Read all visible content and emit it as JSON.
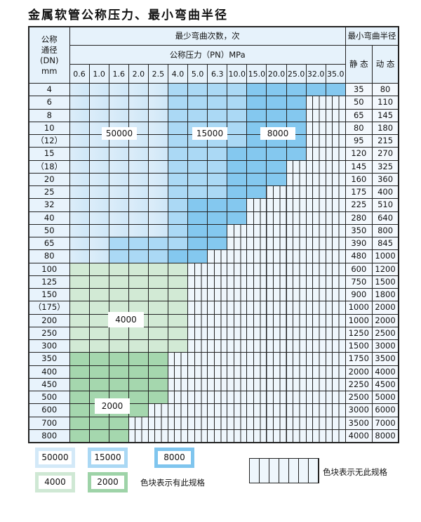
{
  "title": "金属软管公称压力、最小弯曲半径",
  "header": {
    "dn_label": [
      "公称",
      "通径",
      "(DN)",
      "mm"
    ],
    "cycles_label": "最少弯曲次数，次",
    "pressure_label": "公称压力（PN）MPa",
    "radius_label": "最小弯曲半径",
    "static_label": "静 态",
    "dynamic_label": "动 态",
    "pressures": [
      "0.6",
      "1.0",
      "1.6",
      "2.0",
      "2.5",
      "4.0",
      "5.0",
      "6.3",
      "10.0",
      "15.0",
      "20.0",
      "25.0",
      "32.0",
      "35.0"
    ]
  },
  "colors": {
    "A": "#d6ebf9",
    "B": "#abd9f5",
    "C": "#84c8ef",
    "G": "#d2ead5",
    "H": "#a5d7ae",
    "none": "#eef6fc"
  },
  "rows": [
    {
      "dn": "4",
      "cells": "AAAAABBBBCCCCC",
      "static": "35",
      "dynamic": "80"
    },
    {
      "dn": "6",
      "cells": "AAAAABBBBCCCxx",
      "static": "50",
      "dynamic": "110"
    },
    {
      "dn": "8",
      "cells": "AAAAABBBBCCCxx",
      "static": "65",
      "dynamic": "145"
    },
    {
      "dn": "10",
      "cells": "AAAAABBBBCCCxx",
      "static": "80",
      "dynamic": "180"
    },
    {
      "dn": "（12）",
      "cells": "AAAAABBBBCCCxx",
      "static": "95",
      "dynamic": "215"
    },
    {
      "dn": "15",
      "cells": "AAAAABBBCCCCxx",
      "static": "120",
      "dynamic": "270"
    },
    {
      "dn": "（18）",
      "cells": "AAAAABBBCCCxxx",
      "static": "145",
      "dynamic": "325"
    },
    {
      "dn": "20",
      "cells": "AAAAABBBCCCxxx",
      "static": "160",
      "dynamic": "360"
    },
    {
      "dn": "25",
      "cells": "AAAAABBBCCxxxx",
      "static": "175",
      "dynamic": "400"
    },
    {
      "dn": "32",
      "cells": "AAAAABCCCxxxxx",
      "static": "225",
      "dynamic": "510"
    },
    {
      "dn": "40",
      "cells": "AAAAABCCCxxxxx",
      "static": "280",
      "dynamic": "640"
    },
    {
      "dn": "50",
      "cells": "AAAAABCCxxxxxx",
      "static": "350",
      "dynamic": "800"
    },
    {
      "dn": "65",
      "cells": "AABBBBCCxxxxxx",
      "static": "390",
      "dynamic": "845"
    },
    {
      "dn": "80",
      "cells": "AABBBCCxxxxxxx",
      "static": "480",
      "dynamic": "1000"
    },
    {
      "dn": "100",
      "cells": "GGGGGGxxxxxxxx",
      "static": "600",
      "dynamic": "1200"
    },
    {
      "dn": "125",
      "cells": "GGGGGGxxxxxxxx",
      "static": "750",
      "dynamic": "1500"
    },
    {
      "dn": "150",
      "cells": "GGGGGGxxxxxxxx",
      "static": "900",
      "dynamic": "1800"
    },
    {
      "dn": "（175）",
      "cells": "GGGGGGxxxxxxxx",
      "static": "1000",
      "dynamic": "2000"
    },
    {
      "dn": "200",
      "cells": "GGGGGGxxxxxxxx",
      "static": "1000",
      "dynamic": "2000"
    },
    {
      "dn": "250",
      "cells": "GGGGGGxxxxxxxx",
      "static": "1250",
      "dynamic": "2500"
    },
    {
      "dn": "300",
      "cells": "GGGGGGxxxxxxxx",
      "static": "1500",
      "dynamic": "3000"
    },
    {
      "dn": "350",
      "cells": "HHHHHxxxxxxxxx",
      "static": "1750",
      "dynamic": "3500"
    },
    {
      "dn": "400",
      "cells": "HHHHHxxxxxxxxx",
      "static": "2000",
      "dynamic": "4000"
    },
    {
      "dn": "450",
      "cells": "HHHHHxxxxxxxxx",
      "static": "2250",
      "dynamic": "4500"
    },
    {
      "dn": "500",
      "cells": "HHHHHxxxxxxxxx",
      "static": "2500",
      "dynamic": "5000"
    },
    {
      "dn": "600",
      "cells": "HHHHxxxxxxxxxx",
      "static": "3000",
      "dynamic": "6000"
    },
    {
      "dn": "700",
      "cells": "HHHxxxxxxxxxxx",
      "static": "3500",
      "dynamic": "7000"
    },
    {
      "dn": "800",
      "cells": "HHHxxxxxxxxxxx",
      "static": "4000",
      "dynamic": "8000"
    }
  ],
  "region_labels": {
    "A": "50000",
    "B": "15000",
    "C": "8000",
    "G": "4000",
    "H": "2000"
  },
  "legend": {
    "items": [
      {
        "value": "50000",
        "color": "#d3e9f8"
      },
      {
        "value": "15000",
        "color": "#aad8f4"
      },
      {
        "value": "8000",
        "color": "#7fc5ee"
      },
      {
        "value": "4000",
        "color": "#cfe8d4"
      },
      {
        "value": "2000",
        "color": "#9ed3a8"
      }
    ],
    "has_spec": "色块表示有此规格",
    "no_spec": "色块表示无此规格"
  }
}
